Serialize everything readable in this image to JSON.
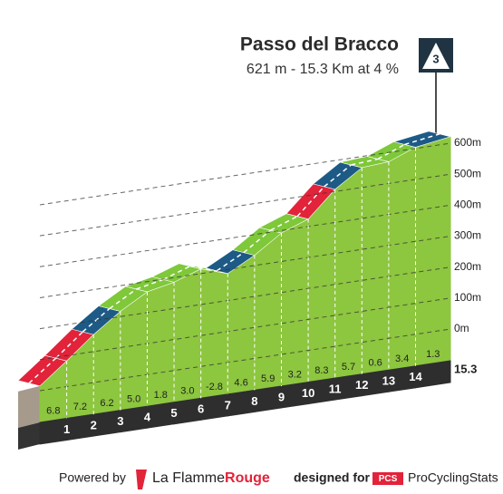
{
  "chart_data": {
    "type": "profile",
    "title": "Passo del Bracco",
    "subtitle": "621 m - 15.3 Km at 4 %",
    "category": "3",
    "x": [
      0,
      1,
      2,
      3,
      4,
      5,
      6,
      7,
      8,
      9,
      10,
      11,
      12,
      13,
      14,
      15.3
    ],
    "elevation": [
      15,
      83,
      155,
      217,
      267,
      285,
      315,
      287,
      333,
      392,
      424,
      507,
      564,
      570,
      604,
      621
    ],
    "xticks": [
      1,
      2,
      3,
      4,
      5,
      6,
      7,
      8,
      9,
      10,
      11,
      12,
      13,
      14
    ],
    "gradients": {
      "values": [
        6.8,
        7.2,
        6.2,
        5.0,
        1.8,
        3.0,
        -2.8,
        4.6,
        5.9,
        3.2,
        8.3,
        5.7,
        0.6,
        3.4,
        1.3
      ],
      "value_labels": [
        "6.8",
        "7.2",
        "6.2",
        "5.0",
        "1.8",
        "3.0",
        "-2.8",
        "4.6",
        "5.9",
        "3.2",
        "8.3",
        "5.7",
        "0.6",
        "3.4",
        "1.3"
      ],
      "colors": [
        "#e2233a",
        "#e2233a",
        "#1d5a86",
        "#7ec83a",
        "#7ec83a",
        "#7ec83a",
        "#7ec83a",
        "#1d5a86",
        "#7ec83a",
        "#7ec83a",
        "#e2233a",
        "#1d5a86",
        "#7ec83a",
        "#7ec83a",
        "#1d5a86"
      ]
    },
    "ylim": [
      0,
      600
    ],
    "yticks": [
      {
        "value": 0,
        "label": "0m"
      },
      {
        "value": 100,
        "label": "100m"
      },
      {
        "value": 200,
        "label": "200m"
      },
      {
        "value": 300,
        "label": "300m"
      },
      {
        "value": 400,
        "label": "400m"
      },
      {
        "value": 500,
        "label": "500m"
      },
      {
        "value": 600,
        "label": "600m"
      }
    ],
    "fill_color": "#8dc63f",
    "grid": true
  },
  "footer": {
    "powered": "Powered by",
    "brand1": "La Flamme",
    "brand2": "Rouge",
    "designed": "designed for",
    "pcs": "PCS",
    "pcs_name": "ProCyclingStats"
  }
}
